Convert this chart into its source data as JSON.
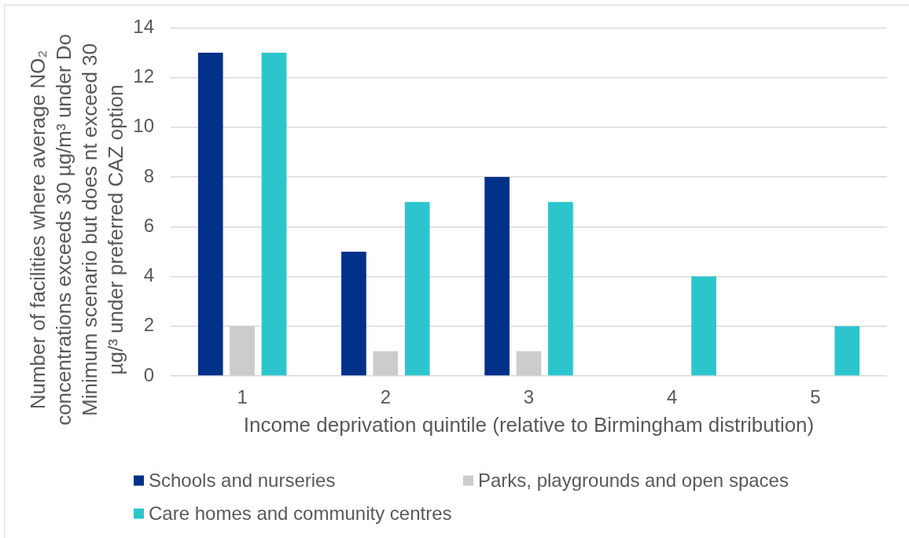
{
  "chart_data": {
    "type": "bar",
    "xlabel": "Income deprivation quintile (relative to Birmingham distribution)",
    "ylabel": "Number of facilities where average NO₂ concentrations exceeds 30 µg/m³ under Do Minimum scenario but does nt exceed 30 µg/³ under preferred CAZ option",
    "categories": [
      "1",
      "2",
      "3",
      "4",
      "5"
    ],
    "series": [
      {
        "name": "Schools and nurseries",
        "color": "#003189",
        "values": [
          13,
          5,
          8,
          null,
          null
        ]
      },
      {
        "name": "Parks, playgrounds and open spaces",
        "color": "#cccccc",
        "values": [
          2,
          1,
          1,
          null,
          null
        ]
      },
      {
        "name": "Care homes and community centres",
        "color": "#2dc5cd",
        "values": [
          13,
          7,
          7,
          4,
          2
        ]
      }
    ],
    "ylim": [
      0,
      14
    ],
    "yticks": [
      0,
      2,
      4,
      6,
      8,
      10,
      12,
      14
    ],
    "grid": "y",
    "legend": "bottom"
  }
}
